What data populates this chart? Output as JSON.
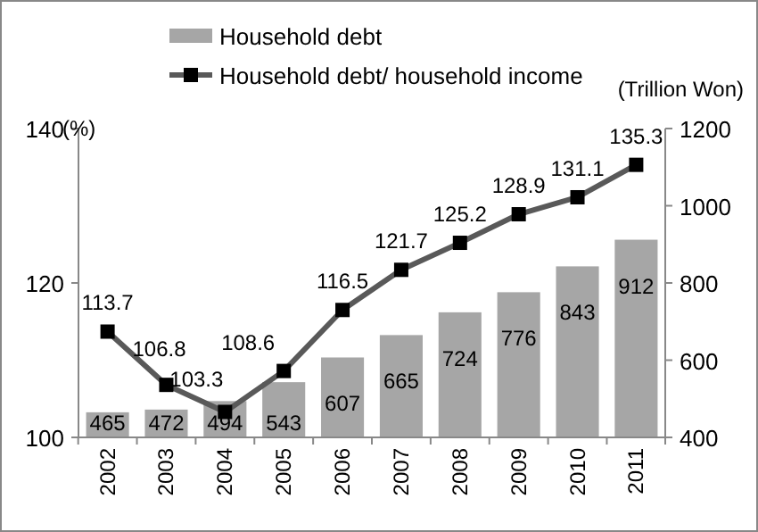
{
  "chart_data": {
    "type": "bar",
    "ylabel": "(%)",
    "y2label": "(Trillion Won)",
    "categories": [
      "2002",
      "2003",
      "2004",
      "2005",
      "2006",
      "2007",
      "2008",
      "2009",
      "2010",
      "2011"
    ],
    "series": [
      {
        "name": "Household debt",
        "axis": "y2",
        "color": "#a6a6a6",
        "values": [
          465,
          472,
          494,
          543,
          607,
          665,
          724,
          776,
          843,
          912
        ]
      },
      {
        "name": "Household debt/ household income",
        "type": "line",
        "axis": "y",
        "color": "#595959",
        "marker": "square",
        "values": [
          113.7,
          106.8,
          103.3,
          108.6,
          116.5,
          121.7,
          125.2,
          128.9,
          131.1,
          135.3
        ]
      }
    ],
    "ylim": [
      100,
      140
    ],
    "yticks": [
      100,
      120,
      140
    ],
    "y2lim": [
      400,
      1200
    ],
    "y2ticks": [
      400,
      600,
      800,
      1000,
      1200
    ],
    "data_labels": true,
    "legend": "top",
    "grid": false
  }
}
